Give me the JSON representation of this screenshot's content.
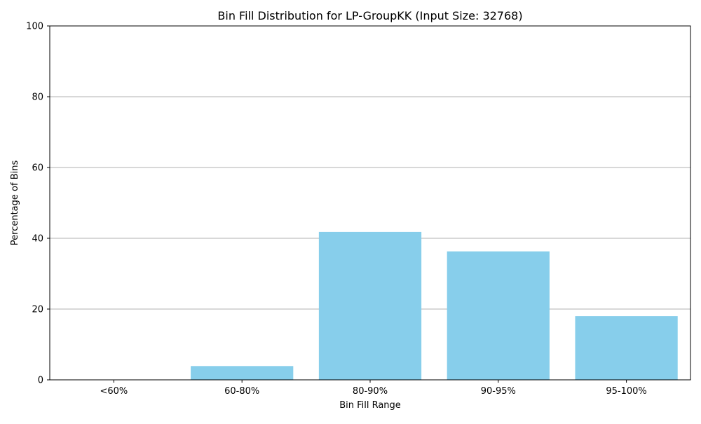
{
  "chart_data": {
    "type": "bar",
    "title": "Bin Fill Distribution for LP-GroupKK (Input Size: 32768)",
    "xlabel": "Bin Fill Range",
    "ylabel": "Percentage of Bins",
    "categories": [
      "<60%",
      "60-80%",
      "80-90%",
      "90-95%",
      "95-100%"
    ],
    "values": [
      0,
      3.9,
      41.8,
      36.3,
      18.0
    ],
    "ylim": [
      0,
      100
    ],
    "yticks": [
      0,
      20,
      40,
      60,
      80,
      100
    ],
    "grid": "y",
    "bar_color": "#87ceeb",
    "grid_color": "#b0b0b0",
    "axis_color": "#000000"
  }
}
